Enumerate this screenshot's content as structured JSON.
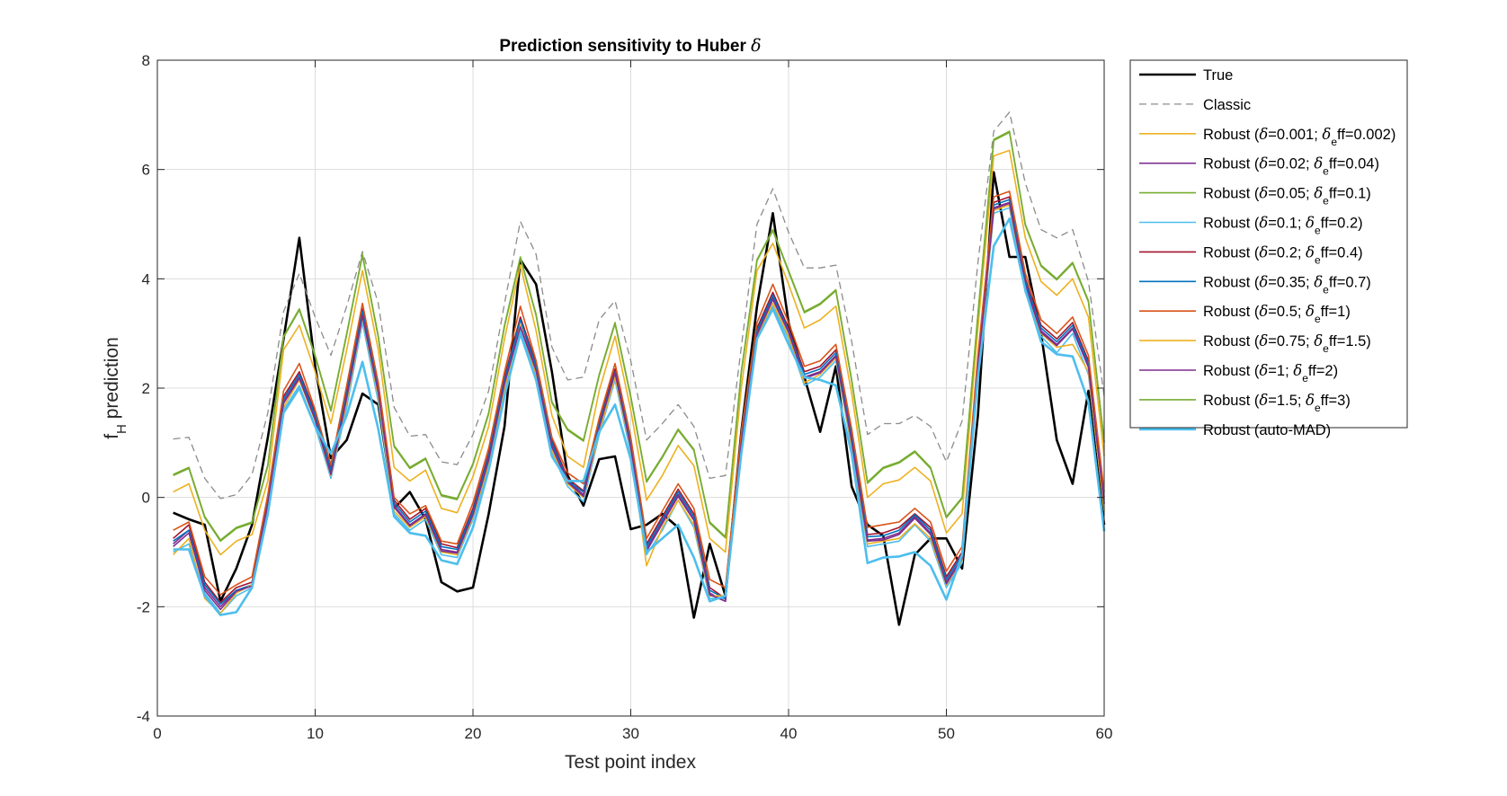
{
  "chart_data": {
    "type": "line",
    "title_prefix": "Prediction sensitivity to Huber ",
    "title_symbol": "δ",
    "xlabel": "Test point index",
    "ylabel_main": "f",
    "ylabel_sub": "H",
    "ylabel_rest": " prediction",
    "xlim": [
      0,
      60
    ],
    "ylim": [
      -4,
      8
    ],
    "xticks": [
      0,
      10,
      20,
      30,
      40,
      50,
      60
    ],
    "yticks": [
      -4,
      -2,
      0,
      2,
      4,
      6,
      8
    ],
    "xtick_labels": [
      "0",
      "10",
      "20",
      "30",
      "40",
      "50",
      "60"
    ],
    "ytick_labels": [
      "-4",
      "-2",
      "0",
      "2",
      "4",
      "6",
      "8"
    ],
    "grid": true,
    "legend_position": "outside-right",
    "x": [
      1,
      2,
      3,
      4,
      5,
      6,
      7,
      8,
      9,
      10,
      11,
      12,
      13,
      14,
      15,
      16,
      17,
      18,
      19,
      20,
      21,
      22,
      23,
      24,
      25,
      26,
      27,
      28,
      29,
      30,
      31,
      32,
      33,
      34,
      35,
      36,
      37,
      38,
      39,
      40,
      41,
      42,
      43,
      44,
      45,
      46,
      47,
      48,
      49,
      50,
      51,
      52,
      53,
      54,
      55,
      56,
      57,
      58,
      59,
      60
    ],
    "series": [
      {
        "legend": "True",
        "color": "#000000",
        "style": "solid",
        "width": 2.6,
        "values": [
          -0.28,
          -0.4,
          -0.5,
          -1.9,
          -1.3,
          -0.5,
          1.1,
          2.9,
          4.75,
          2.4,
          0.72,
          1.05,
          1.9,
          1.7,
          -0.2,
          0.1,
          -0.4,
          -1.55,
          -1.72,
          -1.65,
          -0.3,
          1.3,
          4.35,
          3.9,
          2.3,
          0.4,
          -0.15,
          0.7,
          0.75,
          -0.58,
          -0.5,
          -0.3,
          -0.55,
          -2.2,
          -0.85,
          -1.8,
          1.2,
          3.5,
          5.2,
          3.2,
          2.2,
          1.2,
          2.4,
          0.2,
          -0.5,
          -0.7,
          -2.33,
          -1.05,
          -0.75,
          -0.75,
          -1.3,
          1.5,
          5.95,
          4.4,
          4.4,
          3.0,
          1.05,
          0.25,
          1.95,
          -0.5
        ]
      },
      {
        "legend": "Classic",
        "color": "#8c8c8c",
        "style": "dashed",
        "width": 1.3,
        "values": [
          1.07,
          1.1,
          0.35,
          -0.02,
          0.05,
          0.42,
          1.55,
          3.4,
          4.1,
          3.3,
          2.6,
          3.5,
          4.5,
          3.55,
          1.65,
          1.12,
          1.15,
          0.65,
          0.6,
          1.15,
          1.95,
          3.55,
          5.05,
          4.45,
          2.75,
          2.15,
          2.2,
          3.25,
          3.6,
          2.5,
          1.05,
          1.35,
          1.7,
          1.3,
          0.35,
          0.4,
          2.75,
          5.0,
          5.65,
          4.85,
          4.2,
          4.2,
          4.25,
          2.85,
          1.15,
          1.35,
          1.35,
          1.5,
          1.3,
          0.65,
          1.4,
          4.3,
          6.7,
          7.05,
          5.75,
          4.9,
          4.75,
          4.9,
          3.95,
          1.85
        ]
      },
      {
        "legend": "Robust (δ=0.001; δeff=0.002)",
        "prefix": "Robust (",
        "after_symbol": "=0.001; ",
        "eff_value": "ff=0.002)",
        "color": "#EDB120",
        "style": "solid",
        "width": 1.6,
        "values": [
          0.1,
          0.25,
          -0.6,
          -1.05,
          -0.8,
          -0.68,
          0.3,
          2.7,
          3.15,
          2.3,
          1.35,
          2.7,
          4.15,
          2.7,
          0.55,
          0.3,
          0.5,
          -0.2,
          -0.28,
          0.38,
          1.3,
          2.9,
          4.25,
          3.05,
          1.5,
          0.75,
          0.55,
          1.95,
          2.95,
          1.6,
          -0.05,
          0.4,
          0.95,
          0.58,
          -0.75,
          -1.0,
          2.0,
          4.15,
          4.65,
          3.9,
          3.1,
          3.25,
          3.5,
          1.9,
          0.0,
          0.25,
          0.32,
          0.55,
          0.3,
          -0.65,
          -0.3,
          3.1,
          6.25,
          6.35,
          4.75,
          3.95,
          3.7,
          4.0,
          3.3,
          0.75
        ]
      },
      {
        "legend": "Robust (δ=0.02; δeff=0.04)",
        "prefix": "Robust (",
        "after_symbol": "=0.02; ",
        "eff_value": "ff=0.04)",
        "color": "#7E2F8E",
        "style": "solid",
        "width": 1.6,
        "values": [
          -0.85,
          -0.6,
          -1.65,
          -2.0,
          -1.7,
          -1.6,
          -0.1,
          1.75,
          2.2,
          1.45,
          0.45,
          1.85,
          3.35,
          1.95,
          -0.15,
          -0.5,
          -0.3,
          -0.95,
          -1.0,
          -0.3,
          0.7,
          2.1,
          3.15,
          2.35,
          0.95,
          0.3,
          0.05,
          1.3,
          2.3,
          0.95,
          -0.95,
          -0.45,
          0.05,
          -0.4,
          -1.75,
          -1.9,
          1.0,
          3.0,
          3.65,
          3.05,
          2.2,
          2.3,
          2.6,
          1.05,
          -0.78,
          -0.75,
          -0.65,
          -0.35,
          -0.65,
          -1.55,
          -1.1,
          2.4,
          5.3,
          5.4,
          3.9,
          3.05,
          2.8,
          3.1,
          2.4,
          -0.1
        ]
      },
      {
        "legend": "Robust (δ=0.05; δeff=0.1)",
        "prefix": "Robust (",
        "after_symbol": "=0.05; ",
        "eff_value": "ff=0.1)",
        "color": "#77AC30",
        "style": "solid",
        "width": 1.6,
        "values": [
          0.42,
          0.55,
          -0.35,
          -0.78,
          -0.55,
          -0.45,
          0.6,
          2.95,
          3.45,
          2.6,
          1.6,
          3.0,
          4.45,
          2.95,
          0.95,
          0.55,
          0.72,
          0.05,
          -0.02,
          0.62,
          1.55,
          3.15,
          4.4,
          3.35,
          1.75,
          1.25,
          1.05,
          2.25,
          3.2,
          1.85,
          0.3,
          0.75,
          1.25,
          0.88,
          -0.45,
          -0.72,
          2.3,
          4.35,
          4.9,
          4.15,
          3.4,
          3.55,
          3.8,
          2.15,
          0.28,
          0.55,
          0.65,
          0.85,
          0.55,
          -0.35,
          0.0,
          3.35,
          6.55,
          6.7,
          5.0,
          4.25,
          4.0,
          4.3,
          3.6,
          1.02
        ]
      },
      {
        "legend": "Robust (δ=0.1; δeff=0.2)",
        "prefix": "Robust (",
        "after_symbol": "=0.1; ",
        "eff_value": "ff=0.2)",
        "color": "#4DBEEE",
        "style": "solid",
        "width": 1.6,
        "values": [
          -1.0,
          -0.85,
          -1.75,
          -2.12,
          -1.8,
          -1.65,
          -0.15,
          1.6,
          2.05,
          1.3,
          0.35,
          1.65,
          3.2,
          1.75,
          -0.3,
          -0.6,
          -0.4,
          -1.05,
          -1.1,
          -0.4,
          0.55,
          1.95,
          3.05,
          2.2,
          0.8,
          0.2,
          -0.08,
          1.15,
          2.15,
          0.8,
          -1.05,
          -0.6,
          -0.05,
          -0.55,
          -1.85,
          -1.85,
          0.85,
          2.9,
          3.5,
          2.9,
          2.05,
          2.2,
          2.5,
          0.9,
          -0.9,
          -0.85,
          -0.8,
          -0.5,
          -0.8,
          -1.65,
          -1.2,
          2.25,
          5.2,
          5.3,
          3.75,
          2.95,
          2.65,
          3.0,
          2.25,
          -0.2
        ]
      },
      {
        "legend": "Robust (δ=0.2; δeff=0.4)",
        "prefix": "Robust (",
        "after_symbol": "=0.2; ",
        "eff_value": "ff=0.4)",
        "color": "#A2142F",
        "style": "solid",
        "width": 1.6,
        "values": [
          -0.75,
          -0.5,
          -1.55,
          -1.92,
          -1.65,
          -1.55,
          -0.05,
          1.85,
          2.3,
          1.55,
          0.55,
          1.95,
          3.45,
          2.05,
          -0.05,
          -0.4,
          -0.2,
          -0.85,
          -0.92,
          -0.2,
          0.8,
          2.2,
          3.3,
          2.45,
          1.05,
          0.35,
          0.12,
          1.4,
          2.35,
          1.05,
          -0.85,
          -0.35,
          0.15,
          -0.3,
          -1.65,
          -1.85,
          1.1,
          3.1,
          3.75,
          3.1,
          2.3,
          2.4,
          2.7,
          1.15,
          -0.68,
          -0.65,
          -0.55,
          -0.3,
          -0.55,
          -1.45,
          -1.0,
          2.5,
          5.4,
          5.5,
          4.0,
          3.15,
          2.9,
          3.2,
          2.5,
          0.0
        ]
      },
      {
        "legend": "Robust (δ=0.35; δeff=0.7)",
        "prefix": "Robust (",
        "after_symbol": "=0.35; ",
        "eff_value": "ff=0.7)",
        "color": "#0072BD",
        "style": "solid",
        "width": 1.6,
        "values": [
          -0.8,
          -0.6,
          -1.6,
          -1.95,
          -1.7,
          -1.6,
          -0.1,
          1.8,
          2.25,
          1.5,
          0.5,
          1.9,
          3.4,
          2.0,
          -0.1,
          -0.45,
          -0.25,
          -0.9,
          -0.95,
          -0.25,
          0.75,
          2.15,
          3.25,
          2.4,
          1.0,
          0.3,
          0.1,
          1.35,
          2.3,
          1.0,
          -0.9,
          -0.4,
          0.1,
          -0.35,
          -1.7,
          -1.85,
          1.05,
          3.05,
          3.7,
          3.05,
          2.25,
          2.35,
          2.65,
          1.1,
          -0.72,
          -0.7,
          -0.6,
          -0.32,
          -0.6,
          -1.5,
          -1.05,
          2.45,
          5.35,
          5.45,
          3.95,
          3.1,
          2.85,
          3.15,
          2.45,
          -0.05
        ]
      },
      {
        "legend": "Robust (δ=0.5; δeff=1)",
        "prefix": "Robust (",
        "after_symbol": "=0.5; ",
        "eff_value": "ff=1)",
        "color": "#D95319",
        "style": "solid",
        "width": 1.6,
        "values": [
          -0.6,
          -0.45,
          -1.45,
          -1.78,
          -1.6,
          -1.45,
          0.05,
          1.95,
          2.45,
          1.6,
          0.6,
          2.05,
          3.55,
          2.1,
          0.0,
          -0.3,
          -0.15,
          -0.8,
          -0.85,
          -0.1,
          0.9,
          2.3,
          3.5,
          2.5,
          1.1,
          0.45,
          0.25,
          1.45,
          2.45,
          1.1,
          -0.75,
          -0.25,
          0.25,
          -0.2,
          -1.5,
          -1.65,
          1.2,
          3.2,
          3.9,
          3.2,
          2.4,
          2.5,
          2.8,
          1.25,
          -0.55,
          -0.5,
          -0.45,
          -0.2,
          -0.45,
          -1.35,
          -0.9,
          2.6,
          5.5,
          5.6,
          4.1,
          3.25,
          3.0,
          3.3,
          2.6,
          0.1
        ]
      },
      {
        "legend": "Robust (δ=0.75; δeff=1.5)",
        "prefix": "Robust (",
        "after_symbol": "=0.75; ",
        "eff_value": "ff=1.5)",
        "color": "#EDB120",
        "style": "solid",
        "width": 1.6,
        "values": [
          -1.05,
          -0.75,
          -1.85,
          -2.12,
          -1.75,
          -1.6,
          -0.2,
          1.65,
          2.15,
          1.4,
          0.4,
          1.75,
          3.3,
          1.85,
          -0.25,
          -0.55,
          -0.35,
          -1.0,
          -1.05,
          -0.35,
          0.6,
          2.0,
          3.15,
          2.25,
          0.85,
          0.25,
          0.0,
          1.2,
          2.2,
          0.9,
          -1.25,
          -0.55,
          -0.05,
          -0.5,
          -1.8,
          -1.8,
          0.9,
          2.95,
          3.55,
          2.95,
          2.1,
          2.25,
          2.55,
          0.95,
          -0.85,
          -0.8,
          -0.75,
          -0.48,
          -0.75,
          -1.6,
          -1.15,
          2.3,
          5.25,
          5.35,
          3.8,
          3.0,
          2.75,
          2.8,
          2.3,
          -0.25
        ]
      },
      {
        "legend": "Robust (δ=1; δeff=2)",
        "prefix": "Robust (",
        "after_symbol": "=1; ",
        "eff_value": "ff=2)",
        "color": "#7E2F8E",
        "style": "solid",
        "width": 1.6,
        "values": [
          -0.9,
          -0.65,
          -1.7,
          -2.05,
          -1.72,
          -1.62,
          -0.12,
          1.72,
          2.18,
          1.42,
          0.42,
          1.82,
          3.32,
          1.92,
          -0.18,
          -0.52,
          -0.32,
          -0.98,
          -1.02,
          -0.32,
          0.68,
          2.08,
          3.12,
          2.32,
          0.92,
          0.28,
          0.02,
          1.28,
          2.28,
          0.92,
          -0.98,
          -0.48,
          0.02,
          -0.42,
          -1.78,
          -1.9,
          0.98,
          2.98,
          3.62,
          3.02,
          2.18,
          2.28,
          2.58,
          1.02,
          -0.8,
          -0.78,
          -0.68,
          -0.38,
          -0.68,
          -1.58,
          -1.12,
          2.38,
          5.28,
          5.38,
          3.88,
          3.02,
          2.78,
          3.08,
          2.38,
          -0.12
        ]
      },
      {
        "legend": "Robust (δ=1.5; δeff=3)",
        "prefix": "Robust (",
        "after_symbol": "=1.5; ",
        "eff_value": "ff=3)",
        "color": "#77AC30",
        "style": "solid",
        "width": 1.6,
        "values": [
          0.4,
          0.53,
          -0.37,
          -0.8,
          -0.57,
          -0.47,
          0.58,
          2.93,
          3.43,
          2.58,
          1.58,
          2.98,
          4.43,
          2.93,
          0.93,
          0.53,
          0.7,
          0.03,
          -0.04,
          0.6,
          1.53,
          3.13,
          4.38,
          3.33,
          1.73,
          1.23,
          1.03,
          2.23,
          3.18,
          1.83,
          0.28,
          0.73,
          1.23,
          0.86,
          -0.47,
          -0.74,
          2.28,
          4.33,
          4.88,
          4.13,
          3.38,
          3.53,
          3.78,
          2.13,
          0.26,
          0.53,
          0.63,
          0.83,
          0.53,
          -0.37,
          -0.02,
          3.33,
          6.53,
          6.68,
          4.98,
          4.23,
          3.98,
          4.28,
          3.58,
          1.0
        ]
      },
      {
        "legend": "Robust (auto-MAD)",
        "color": "#4DBEEE",
        "style": "solid",
        "width": 2.6,
        "values": [
          -0.95,
          -0.95,
          -1.8,
          -2.15,
          -2.1,
          -1.65,
          -0.3,
          1.55,
          2.0,
          1.3,
          0.8,
          1.5,
          2.48,
          1.25,
          -0.35,
          -0.65,
          -0.7,
          -1.15,
          -1.22,
          -0.55,
          0.5,
          1.85,
          3.0,
          2.15,
          0.75,
          0.3,
          0.3,
          1.2,
          1.7,
          0.7,
          -1.0,
          -0.75,
          -0.5,
          -1.1,
          -1.9,
          -1.8,
          0.8,
          2.9,
          3.45,
          2.8,
          2.2,
          2.15,
          2.05,
          0.8,
          -1.2,
          -1.1,
          -1.08,
          -1.0,
          -1.25,
          -1.87,
          -1.05,
          2.2,
          4.6,
          5.1,
          3.8,
          2.85,
          2.62,
          2.58,
          1.75,
          -0.62
        ]
      }
    ]
  }
}
